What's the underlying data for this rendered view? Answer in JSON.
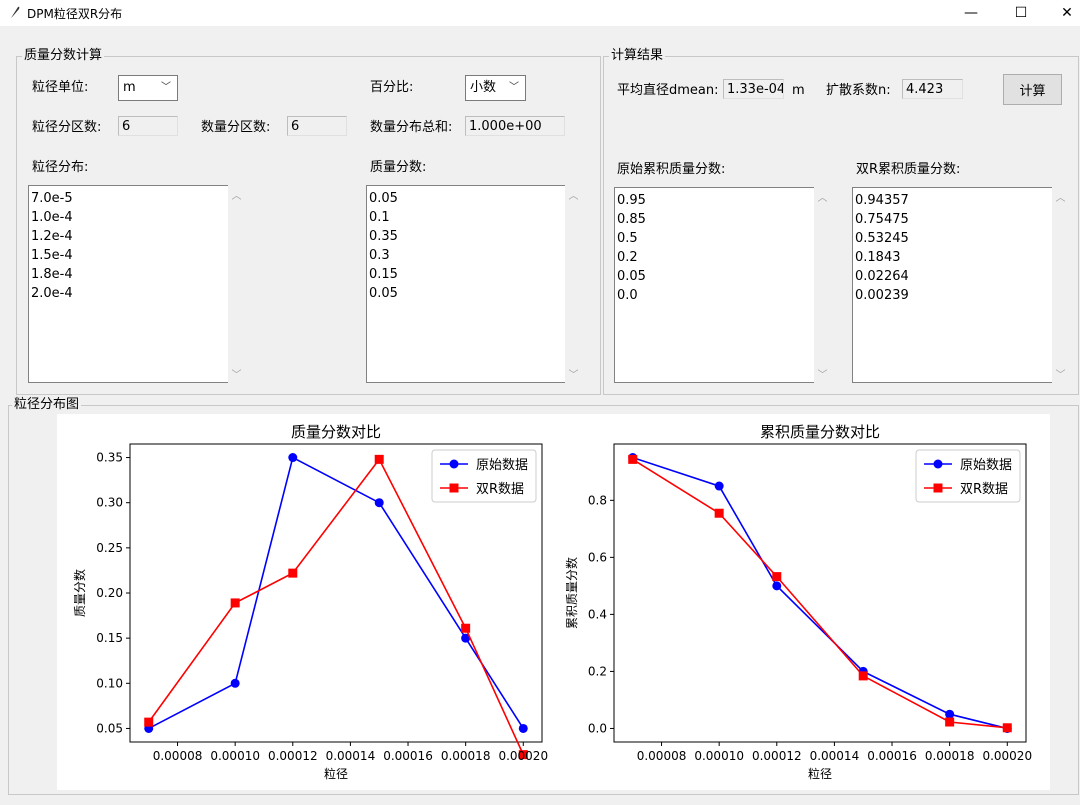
{
  "window": {
    "title": "DPM粒径双R分布",
    "minimize": "—",
    "maximize": "☐",
    "close": "✕"
  },
  "calc_group": {
    "title": "质量分数计算",
    "particle_unit_label": "粒径单位:",
    "particle_unit_value": "m",
    "percent_label": "百分比:",
    "percent_value": "小数",
    "size_bins_label": "粒径分区数:",
    "size_bins_value": "6",
    "mass_bins_label": "数量分区数:",
    "mass_bins_value": "6",
    "mass_total_label": "数量分布总和:",
    "mass_total_value": "1.000e+00",
    "size_dist_label": "粒径分布:",
    "size_dist": [
      "7.0e-5",
      "1.0e-4",
      "1.2e-4",
      "1.5e-4",
      "1.8e-4",
      "2.0e-4"
    ],
    "mass_frac_label": "质量分数:",
    "mass_frac": [
      "0.05",
      "0.1",
      "0.35",
      "0.3",
      "0.15",
      "0.05"
    ]
  },
  "result_group": {
    "title": "计算结果",
    "dmean_label": "平均直径dmean:",
    "dmean_value": "1.33e-04",
    "dmean_unit": "m",
    "spread_label": "扩散系数n:",
    "spread_value": "4.423",
    "calc_button": "计算",
    "orig_cum_label": "原始累积质量分数:",
    "orig_cum": [
      "0.95",
      "0.85",
      "0.5",
      "0.2",
      "0.05",
      "0.0"
    ],
    "rr_cum_label": "双R累积质量分数:",
    "rr_cum": [
      "0.94357",
      "0.75475",
      "0.53245",
      "0.1843",
      "0.02264",
      "0.00239"
    ]
  },
  "plot_group": {
    "title": "粒径分布图"
  },
  "chart_data": [
    {
      "type": "line",
      "title": "质量分数对比",
      "xlabel": "粒径",
      "ylabel": "质量分数",
      "x": [
        7e-05,
        0.0001,
        0.00012,
        0.00015,
        0.00018,
        0.0002
      ],
      "xticks": [
        "0.00008",
        "0.00010",
        "0.00012",
        "0.00014",
        "0.00016",
        "0.00018",
        "0.00020"
      ],
      "yticks": [
        "0.05",
        "0.10",
        "0.15",
        "0.20",
        "0.25",
        "0.30",
        "0.35"
      ],
      "xlim": [
        6.35e-05,
        0.0002065
      ],
      "ylim": [
        0.035,
        0.365
      ],
      "legend": "top-right",
      "series": [
        {
          "name": "原始数据",
          "color": "#0000ff",
          "marker": "circle",
          "values": [
            0.05,
            0.1,
            0.35,
            0.3,
            0.15,
            0.05
          ]
        },
        {
          "name": "双R数据",
          "color": "#ff0000",
          "marker": "square",
          "values": [
            0.057,
            0.189,
            0.222,
            0.348,
            0.161,
            0.021
          ]
        }
      ]
    },
    {
      "type": "line",
      "title": "累积质量分数对比",
      "xlabel": "粒径",
      "ylabel": "累积质量分数",
      "x": [
        7e-05,
        0.0001,
        0.00012,
        0.00015,
        0.00018,
        0.0002
      ],
      "xticks": [
        "0.00008",
        "0.00010",
        "0.00012",
        "0.00014",
        "0.00016",
        "0.00018",
        "0.00020"
      ],
      "yticks": [
        "0.0",
        "0.2",
        "0.4",
        "0.6",
        "0.8"
      ],
      "xlim": [
        6.35e-05,
        0.0002065
      ],
      "ylim": [
        -0.0475,
        0.9975
      ],
      "legend": "top-right",
      "series": [
        {
          "name": "原始数据",
          "color": "#0000ff",
          "marker": "circle",
          "values": [
            0.95,
            0.85,
            0.5,
            0.2,
            0.05,
            0.0
          ]
        },
        {
          "name": "双R数据",
          "color": "#ff0000",
          "marker": "square",
          "values": [
            0.94357,
            0.75475,
            0.53245,
            0.1843,
            0.02264,
            0.00239
          ]
        }
      ]
    }
  ]
}
